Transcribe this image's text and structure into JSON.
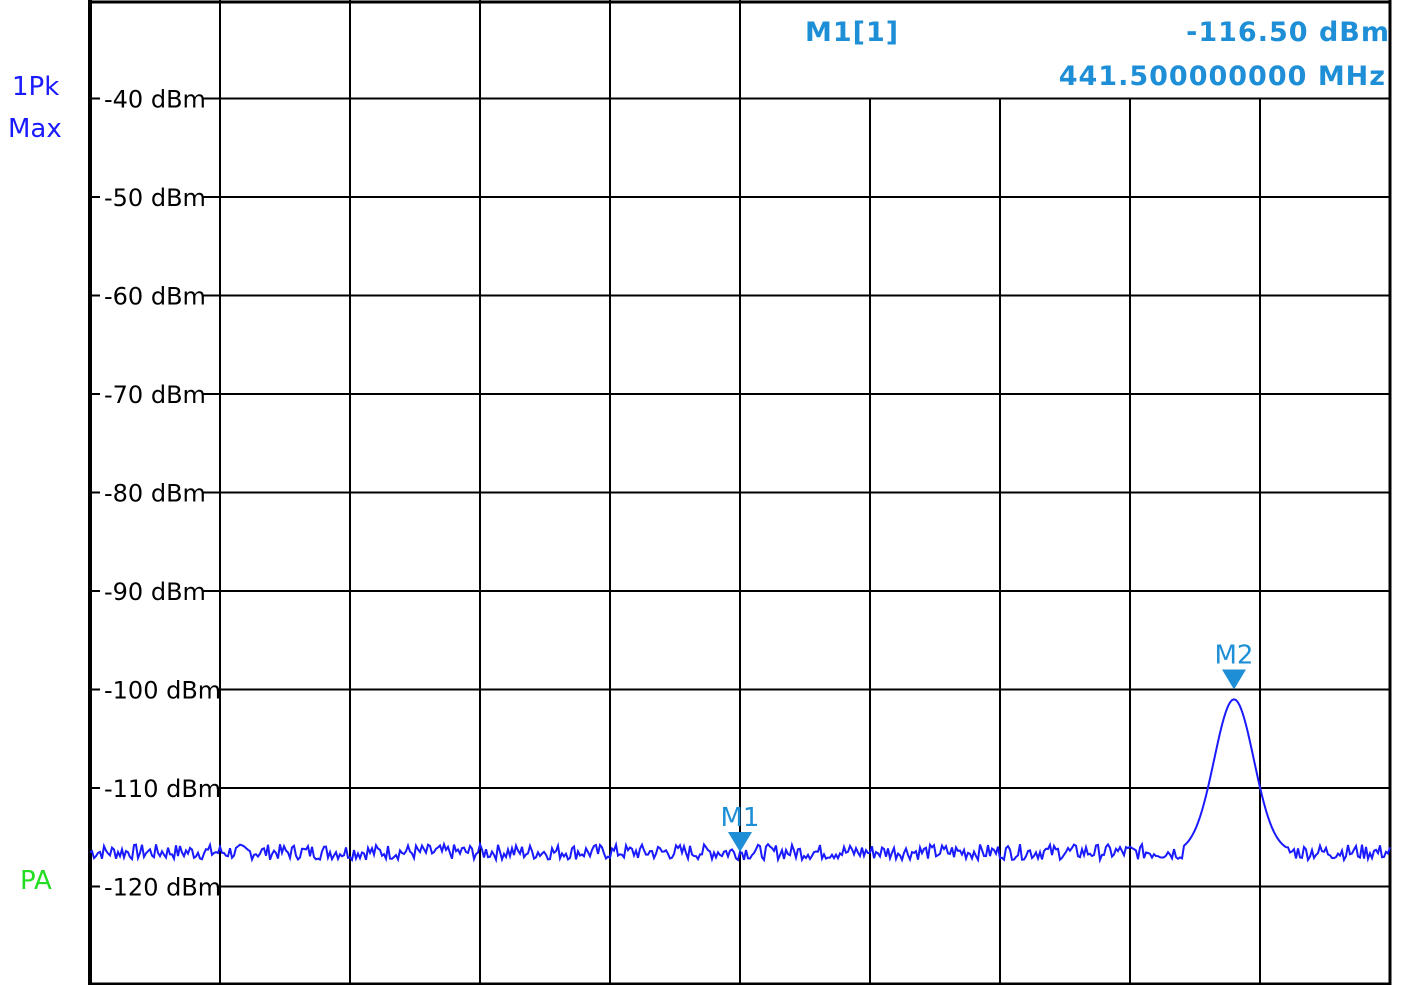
{
  "side_labels": {
    "trace_mode_line1": "1Pk",
    "trace_mode_line2": "Max",
    "preamp": "PA"
  },
  "marker_readout": {
    "name": "M1[1]",
    "level": "-116.50 dBm",
    "frequency": "441.500000000 MHz"
  },
  "colors": {
    "trace": "#1a1aff",
    "marker": "#1e8fd6",
    "side_label": "#1a1aff",
    "preamp_label": "#22dd22",
    "grid": "#000000"
  },
  "chart_data": {
    "type": "line",
    "ylim": [
      -130,
      -30
    ],
    "x_divisions": 10,
    "y_ticks": [
      {
        "value": -40,
        "label": "-40 dBm"
      },
      {
        "value": -50,
        "label": "-50 dBm"
      },
      {
        "value": -60,
        "label": "-60 dBm"
      },
      {
        "value": -70,
        "label": "-70 dBm"
      },
      {
        "value": -80,
        "label": "-80 dBm"
      },
      {
        "value": -90,
        "label": "-90 dBm"
      },
      {
        "value": -100,
        "label": "-100 dBm"
      },
      {
        "value": -110,
        "label": "-110 dBm"
      },
      {
        "value": -120,
        "label": "-120 dBm"
      }
    ],
    "series": [
      {
        "noise_floor_dbm": -116.5,
        "noise_ripple_db": 0.8,
        "peak": {
          "division": 8.8,
          "level_dbm": -101.0,
          "half_width_div": 0.32
        }
      }
    ],
    "markers": [
      {
        "label": "M1",
        "division": 5.0,
        "level_dbm": -116.5
      },
      {
        "label": "M2",
        "division": 8.8,
        "level_dbm": -100.0
      }
    ]
  }
}
